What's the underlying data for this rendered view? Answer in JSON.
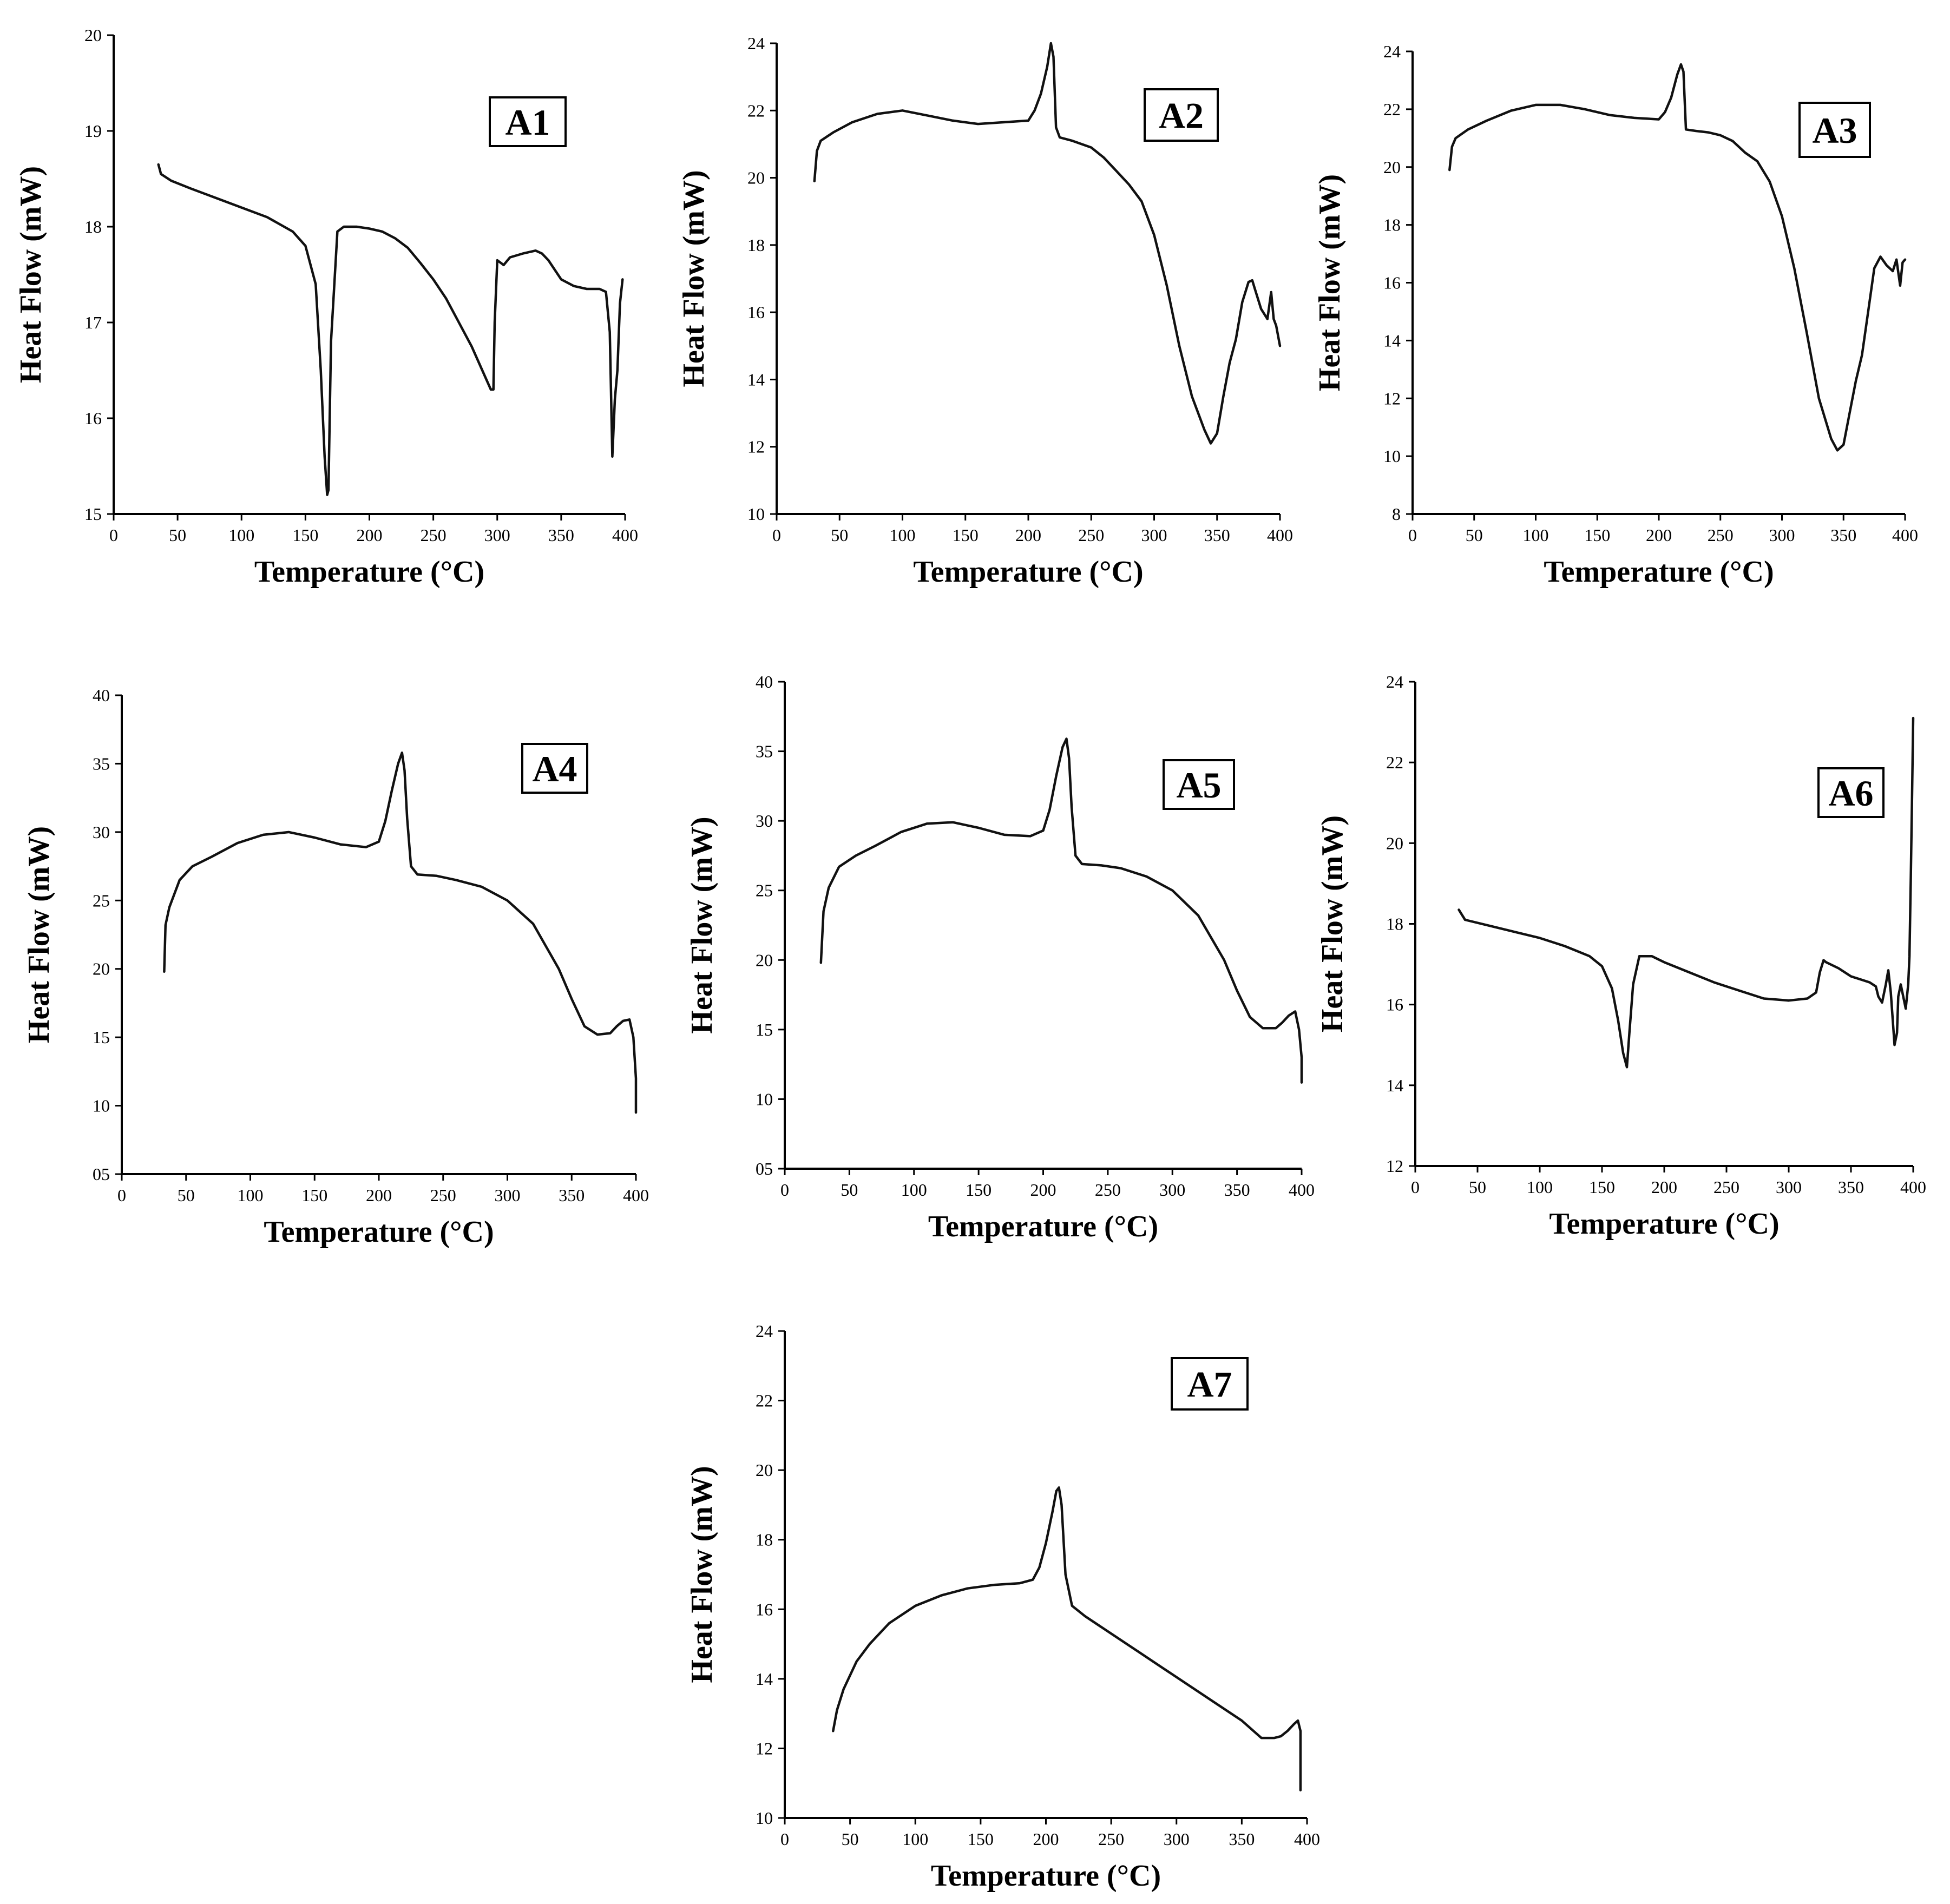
{
  "chart_data": [
    {
      "panel": "A1",
      "type": "line",
      "xlabel": "Temperature (°C)",
      "ylabel": "Heat Flow (mW)",
      "xlim": [
        0,
        400
      ],
      "ylim": [
        15,
        20
      ],
      "xticks": [
        "0",
        "50",
        "100",
        "150",
        "200",
        "250",
        "300",
        "350",
        "400"
      ],
      "yticks": [
        "15",
        "16",
        "17",
        "18",
        "19",
        "20"
      ],
      "series": [
        {
          "name": "A1",
          "x": [
            35,
            37,
            45,
            60,
            80,
            100,
            120,
            140,
            150,
            158,
            162,
            165,
            167,
            168,
            170,
            175,
            180,
            190,
            200,
            210,
            220,
            230,
            240,
            250,
            260,
            270,
            280,
            290,
            295,
            297,
            298,
            300,
            305,
            310,
            320,
            330,
            335,
            340,
            350,
            360,
            370,
            380,
            385,
            388,
            390,
            392,
            394,
            396,
            398
          ],
          "y": [
            18.65,
            18.55,
            18.48,
            18.4,
            18.3,
            18.2,
            18.1,
            17.95,
            17.8,
            17.4,
            16.5,
            15.6,
            15.2,
            15.25,
            16.8,
            17.95,
            18,
            18,
            17.98,
            17.95,
            17.88,
            17.78,
            17.62,
            17.45,
            17.25,
            17.0,
            16.75,
            16.45,
            16.3,
            16.3,
            17.0,
            17.65,
            17.6,
            17.68,
            17.72,
            17.75,
            17.72,
            17.65,
            17.45,
            17.38,
            17.35,
            17.35,
            17.32,
            16.9,
            15.6,
            16.2,
            16.5,
            17.2,
            17.45
          ]
        }
      ]
    },
    {
      "panel": "A2",
      "type": "line",
      "xlabel": "Temperature (°C)",
      "ylabel": "Heat Flow (mW)",
      "xlim": [
        0,
        400
      ],
      "ylim": [
        10,
        24
      ],
      "xticks": [
        "0",
        "50",
        "100",
        "150",
        "200",
        "250",
        "300",
        "350",
        "400"
      ],
      "yticks": [
        "10",
        "12",
        "14",
        "16",
        "18",
        "20",
        "22",
        "24"
      ],
      "series": [
        {
          "name": "A2",
          "x": [
            30,
            32,
            35,
            45,
            60,
            80,
            100,
            120,
            140,
            160,
            180,
            200,
            205,
            210,
            215,
            218,
            220,
            222,
            225,
            235,
            250,
            260,
            270,
            280,
            290,
            300,
            310,
            320,
            330,
            340,
            345,
            350,
            355,
            360,
            365,
            370,
            375,
            378,
            380,
            385,
            390,
            393,
            395,
            397,
            400
          ],
          "y": [
            19.9,
            20.8,
            21.1,
            21.35,
            21.65,
            21.9,
            22.0,
            21.85,
            21.7,
            21.6,
            21.65,
            21.7,
            22.0,
            22.5,
            23.3,
            24.0,
            23.6,
            21.5,
            21.2,
            21.1,
            20.9,
            20.6,
            20.2,
            19.8,
            19.3,
            18.3,
            16.8,
            15.0,
            13.5,
            12.5,
            12.1,
            12.4,
            13.5,
            14.5,
            15.2,
            16.3,
            16.9,
            16.95,
            16.7,
            16.1,
            15.8,
            16.6,
            15.8,
            15.6,
            15.0
          ]
        }
      ]
    },
    {
      "panel": "A3",
      "type": "line",
      "xlabel": "Temperature (°C)",
      "ylabel": "Heat Flow (mW)",
      "xlim": [
        0,
        400
      ],
      "ylim": [
        8,
        24
      ],
      "xticks": [
        "0",
        "50",
        "100",
        "150",
        "200",
        "250",
        "300",
        "350",
        "400"
      ],
      "yticks": [
        "8",
        "10",
        "12",
        "14",
        "16",
        "18",
        "20",
        "22",
        "24"
      ],
      "ytick_labels_shown": [
        "8",
        "10",
        "12",
        "14",
        "16",
        "18",
        "20",
        "22",
        "24"
      ],
      "series": [
        {
          "name": "A3",
          "x": [
            30,
            32,
            35,
            45,
            60,
            80,
            100,
            120,
            140,
            160,
            180,
            200,
            205,
            210,
            215,
            218,
            220,
            222,
            230,
            240,
            250,
            260,
            270,
            280,
            290,
            300,
            310,
            320,
            330,
            340,
            345,
            350,
            355,
            360,
            365,
            370,
            375,
            380,
            385,
            390,
            393,
            396,
            398,
            400
          ],
          "y": [
            19.9,
            20.7,
            21.0,
            21.3,
            21.6,
            21.95,
            22.15,
            22.15,
            22.0,
            21.8,
            21.7,
            21.65,
            21.9,
            22.4,
            23.2,
            23.55,
            23.3,
            21.3,
            21.25,
            21.2,
            21.1,
            20.9,
            20.5,
            20.2,
            19.5,
            18.3,
            16.5,
            14.3,
            12.0,
            10.6,
            10.2,
            10.4,
            11.5,
            12.6,
            13.5,
            15.0,
            16.5,
            16.9,
            16.6,
            16.4,
            16.8,
            15.9,
            16.7,
            16.8
          ]
        }
      ]
    },
    {
      "panel": "A4",
      "type": "line",
      "xlabel": "Temperature (°C)",
      "ylabel": "Heat Flow (mW)",
      "xlim": [
        0,
        400
      ],
      "ylim": [
        5,
        40
      ],
      "xticks": [
        "0",
        "50",
        "100",
        "150",
        "200",
        "250",
        "300",
        "350",
        "400"
      ],
      "yticks": [
        "05",
        "10",
        "15",
        "20",
        "25",
        "30",
        "35",
        "40"
      ],
      "series": [
        {
          "name": "A4",
          "x": [
            33,
            34,
            37,
            45,
            55,
            70,
            90,
            110,
            130,
            150,
            170,
            190,
            200,
            205,
            210,
            215,
            218,
            220,
            222,
            225,
            230,
            245,
            260,
            280,
            300,
            320,
            340,
            350,
            360,
            370,
            380,
            385,
            390,
            395,
            398,
            400,
            400
          ],
          "y": [
            19.8,
            23.2,
            24.5,
            26.5,
            27.5,
            28.2,
            29.2,
            29.8,
            30.0,
            29.6,
            29.1,
            28.9,
            29.3,
            30.8,
            33.0,
            35.0,
            35.8,
            34.5,
            31.0,
            27.5,
            26.9,
            26.8,
            26.5,
            26.0,
            25.0,
            23.3,
            20.0,
            17.8,
            15.8,
            15.2,
            15.3,
            15.8,
            16.2,
            16.3,
            15.0,
            12.0,
            9.5
          ]
        }
      ]
    },
    {
      "panel": "A5",
      "type": "line",
      "xlabel": "Temperature (°C)",
      "ylabel": "Heat Flow (mW)",
      "xlim": [
        0,
        400
      ],
      "ylim": [
        5,
        40
      ],
      "xticks": [
        "0",
        "50",
        "100",
        "150",
        "200",
        "250",
        "300",
        "350",
        "400"
      ],
      "yticks": [
        "05",
        "10",
        "15",
        "20",
        "25",
        "30",
        "35",
        "40"
      ],
      "series": [
        {
          "name": "A5",
          "x": [
            28,
            30,
            34,
            42,
            55,
            70,
            90,
            110,
            130,
            150,
            170,
            190,
            200,
            205,
            210,
            215,
            218,
            220,
            222,
            225,
            230,
            245,
            260,
            280,
            300,
            320,
            340,
            350,
            360,
            370,
            380,
            385,
            390,
            395,
            398,
            400,
            400
          ],
          "y": [
            19.8,
            23.5,
            25.2,
            26.7,
            27.5,
            28.2,
            29.2,
            29.8,
            29.9,
            29.5,
            29.0,
            28.9,
            29.3,
            30.8,
            33.2,
            35.3,
            35.9,
            34.5,
            31.0,
            27.5,
            26.9,
            26.8,
            26.6,
            26.0,
            25.0,
            23.2,
            20.0,
            17.8,
            15.9,
            15.1,
            15.1,
            15.5,
            16.0,
            16.3,
            15.0,
            13.0,
            11.2
          ]
        }
      ]
    },
    {
      "panel": "A6",
      "type": "line",
      "xlabel": "Temperature (°C)",
      "ylabel": "Heat Flow (mW)",
      "xlim": [
        0,
        400
      ],
      "ylim": [
        12,
        24
      ],
      "xticks": [
        "0",
        "50",
        "100",
        "150",
        "200",
        "250",
        "300",
        "350",
        "400"
      ],
      "yticks": [
        "12",
        "14",
        "16",
        "18",
        "20",
        "22",
        "24"
      ],
      "series": [
        {
          "name": "A6",
          "x": [
            35,
            37,
            40,
            60,
            80,
            100,
            120,
            140,
            150,
            158,
            163,
            167,
            170,
            172,
            175,
            180,
            190,
            200,
            220,
            240,
            260,
            280,
            300,
            315,
            322,
            325,
            328,
            330,
            340,
            350,
            360,
            365,
            370,
            372,
            375,
            378,
            380,
            382,
            385,
            387,
            388,
            390,
            392,
            394,
            396,
            397,
            398,
            399,
            400
          ],
          "y": [
            18.35,
            18.25,
            18.1,
            17.95,
            17.8,
            17.65,
            17.45,
            17.2,
            16.95,
            16.4,
            15.6,
            14.8,
            14.45,
            15.3,
            16.5,
            17.2,
            17.2,
            17.05,
            16.8,
            16.55,
            16.35,
            16.15,
            16.1,
            16.15,
            16.3,
            16.8,
            17.1,
            17.05,
            16.9,
            16.7,
            16.6,
            16.55,
            16.45,
            16.2,
            16.05,
            16.5,
            16.85,
            16.3,
            15.0,
            15.3,
            16.2,
            16.5,
            16.2,
            15.9,
            16.5,
            17.2,
            19.0,
            21.0,
            23.1
          ]
        }
      ]
    },
    {
      "panel": "A7",
      "type": "line",
      "xlabel": "Temperature (°C)",
      "ylabel": "Heat Flow (mW)",
      "xlim": [
        0,
        400
      ],
      "ylim": [
        10,
        24
      ],
      "xticks": [
        "0",
        "50",
        "100",
        "150",
        "200",
        "250",
        "300",
        "350",
        "400"
      ],
      "yticks": [
        "10",
        "12",
        "14",
        "16",
        "18",
        "20",
        "22",
        "24"
      ],
      "series": [
        {
          "name": "A7",
          "x": [
            37,
            40,
            45,
            55,
            65,
            80,
            100,
            120,
            140,
            160,
            180,
            190,
            195,
            200,
            205,
            208,
            210,
            212,
            215,
            220,
            230,
            250,
            270,
            290,
            310,
            330,
            350,
            365,
            370,
            375,
            380,
            385,
            390,
            393,
            395,
            395
          ],
          "y": [
            12.5,
            13.1,
            13.7,
            14.5,
            15.0,
            15.6,
            16.1,
            16.4,
            16.6,
            16.7,
            16.75,
            16.85,
            17.2,
            17.9,
            18.8,
            19.4,
            19.5,
            19.0,
            17.0,
            16.1,
            15.8,
            15.3,
            14.8,
            14.3,
            13.8,
            13.3,
            12.8,
            12.3,
            12.3,
            12.3,
            12.35,
            12.5,
            12.7,
            12.8,
            12.5,
            10.8
          ]
        }
      ]
    }
  ]
}
